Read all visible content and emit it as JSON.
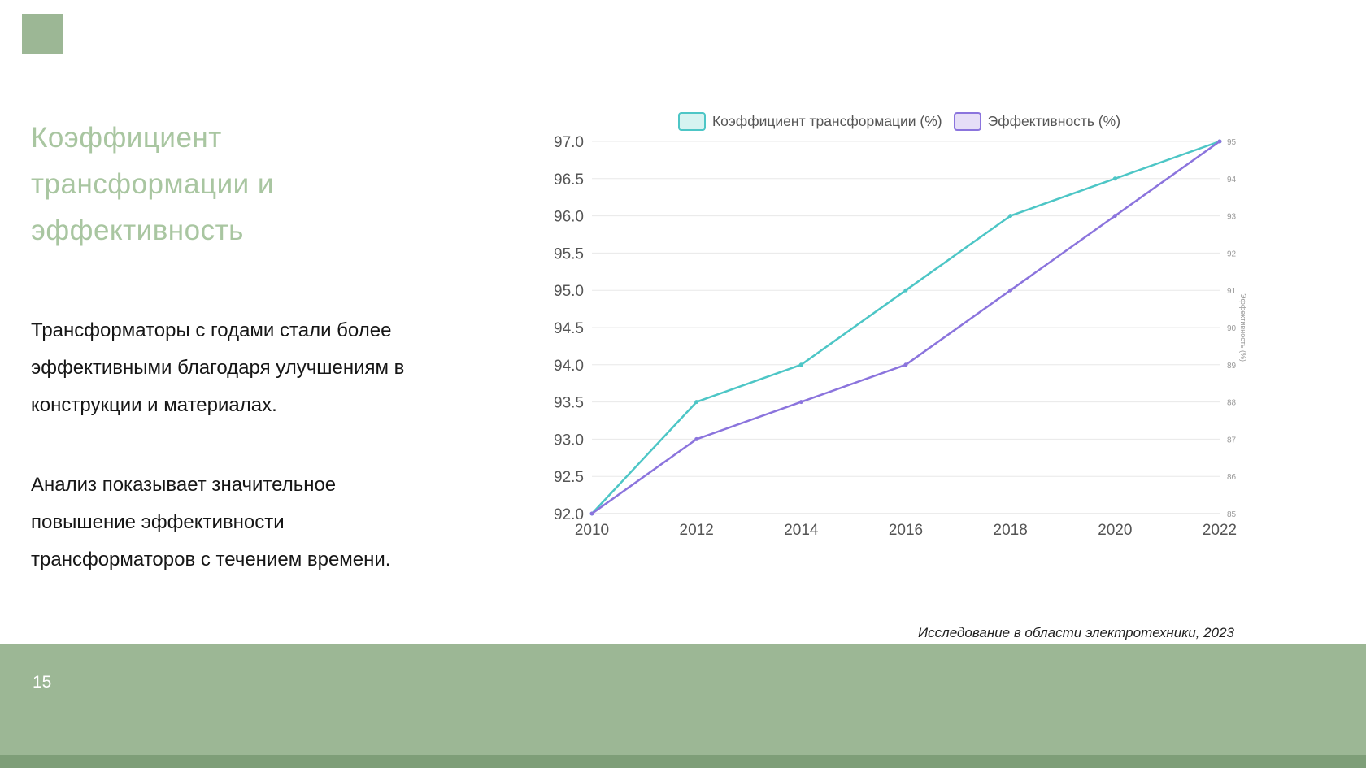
{
  "slide": {
    "title": "Коэффициент\nтрансформации и\nэффективность",
    "paragraph1": "Трансформаторы с годами стали более\nэффективными благодаря улучшениям в\nконструкции и материалах.",
    "paragraph2": "Анализ показывает значительное\nповышение эффективности\nтрансформаторов с течением времени.",
    "source": "Исследование в области электротехники, 2023",
    "page_number": "15"
  },
  "colors": {
    "accent_green": "#9cb795",
    "accent_green_dark": "#7e9e78",
    "title_green": "#a9c6a1",
    "teal_line": "#4dc6c6",
    "purple_line": "#8b74dd",
    "axis_text": "#555555",
    "grid": "#e8e8e8"
  },
  "chart_data": {
    "type": "line",
    "x": [
      2010,
      2012,
      2014,
      2016,
      2018,
      2020,
      2022
    ],
    "series": [
      {
        "name": "Коэффициент трансформации (%)",
        "axis": "left",
        "color": "#4dc6c6",
        "fill": "#d6f3f1",
        "values": [
          92.0,
          93.5,
          94.0,
          95.0,
          96.0,
          96.5,
          97.0
        ]
      },
      {
        "name": "Эффективность (%)",
        "axis": "right",
        "color": "#8b74dd",
        "fill": "#e6def7",
        "values": [
          85,
          87,
          88,
          89,
          91,
          93,
          95
        ]
      }
    ],
    "left_axis": {
      "min": 92.0,
      "max": 97.0,
      "step": 0.5
    },
    "right_axis": {
      "min": 85,
      "max": 95,
      "step": 1,
      "label": "Эффективность (%)"
    },
    "legend_position": "top",
    "grid": true
  }
}
